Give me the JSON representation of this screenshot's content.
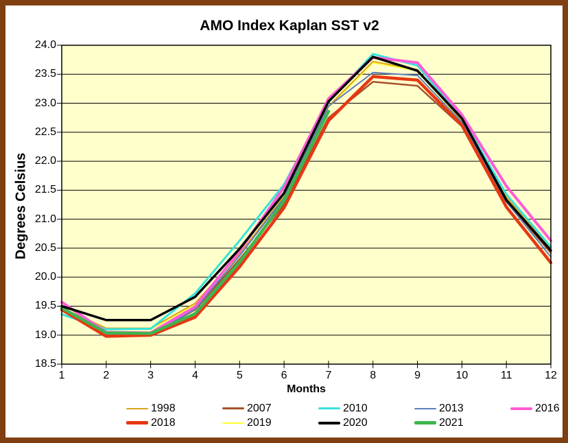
{
  "window": {
    "frame_color": "#7f3f10",
    "background_color": "#ffffff"
  },
  "chart_data": {
    "type": "line",
    "title": "AMO Index Kaplan SST v2",
    "xlabel": "Months",
    "ylabel": "Degrees Celsius",
    "plot_background": "#ffffcc",
    "grid": "horizontal major gridlines every 0.5, thin black",
    "legend_position": "bottom",
    "xlim": [
      1,
      12
    ],
    "ylim": [
      18.5,
      24.0
    ],
    "x": [
      1,
      2,
      3,
      4,
      5,
      6,
      7,
      8,
      9,
      10,
      11,
      12
    ],
    "ytick_values": [
      24.0,
      23.5,
      23.0,
      22.5,
      22.0,
      21.5,
      21.0,
      20.5,
      20.0,
      19.5,
      19.0,
      18.5
    ],
    "ytick_labels": [
      "24.0",
      "23.5",
      "23.0",
      "22.5",
      "22.0",
      "21.5",
      "21.0",
      "20.5",
      "20.0",
      "19.5",
      "19.0",
      "18.5"
    ],
    "series": [
      {
        "name": "1998",
        "color": "#d9a521",
        "line_width": 2,
        "values": [
          19.47,
          19.12,
          19.12,
          19.55,
          20.4,
          21.4,
          22.95,
          23.72,
          23.58,
          22.7,
          21.38,
          20.5
        ]
      },
      {
        "name": "2007",
        "color": "#a6522b",
        "line_width": 2.5,
        "values": [
          19.43,
          19.0,
          19.01,
          19.44,
          20.31,
          21.26,
          22.75,
          23.37,
          23.3,
          22.6,
          21.3,
          20.42
        ]
      },
      {
        "name": "2010",
        "color": "#35e3dc",
        "line_width": 3,
        "values": [
          19.36,
          19.1,
          19.11,
          19.72,
          20.63,
          21.6,
          23.02,
          23.85,
          23.65,
          22.75,
          21.43,
          20.52
        ]
      },
      {
        "name": "2013",
        "color": "#5b7ebe",
        "line_width": 2,
        "values": [
          19.42,
          19.02,
          19.0,
          19.45,
          20.37,
          21.37,
          22.95,
          23.53,
          23.48,
          22.67,
          21.3,
          20.35
        ]
      },
      {
        "name": "2016",
        "color": "#ff5cd6",
        "line_width": 4,
        "values": [
          19.57,
          19.05,
          19.04,
          19.49,
          20.45,
          21.55,
          23.08,
          23.79,
          23.7,
          22.8,
          21.57,
          20.63
        ]
      },
      {
        "name": "2018",
        "color": "#e63812",
        "line_width": 4.5,
        "values": [
          19.44,
          18.98,
          19.0,
          19.31,
          20.18,
          21.2,
          22.7,
          23.46,
          23.4,
          22.62,
          21.21,
          20.25
        ]
      },
      {
        "name": "2019",
        "color": "#ffff33",
        "line_width": 2,
        "values": [
          19.46,
          19.1,
          19.1,
          19.53,
          20.38,
          21.38,
          22.93,
          23.7,
          23.56,
          22.69,
          21.36,
          20.48
        ]
      },
      {
        "name": "2020",
        "color": "#000000",
        "line_width": 3.5,
        "values": [
          19.5,
          19.26,
          19.26,
          19.66,
          20.49,
          21.45,
          23.03,
          23.8,
          23.56,
          22.74,
          21.33,
          20.46
        ]
      },
      {
        "name": "2021",
        "color": "#3fb54e",
        "line_width": 4.5,
        "values": [
          19.47,
          19.04,
          19.03,
          19.37,
          20.26,
          21.32,
          22.86,
          null,
          null,
          null,
          null,
          null
        ]
      }
    ],
    "draw_order": [
      "2019",
      "1998",
      "2007",
      "2013",
      "2010",
      "2016",
      "2018",
      "2021",
      "2020"
    ]
  }
}
